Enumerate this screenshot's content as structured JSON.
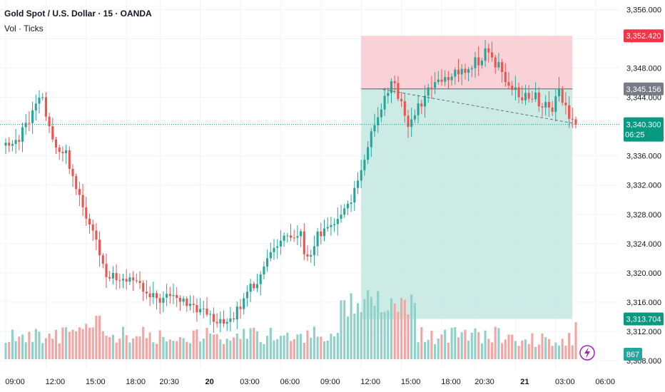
{
  "header": {
    "title": "Gold Spot / U.S. Dollar · 15 · OANDA",
    "indicator": "Vol · Ticks"
  },
  "colors": {
    "up": "#26a69a",
    "down": "#ef5350",
    "vol_up": "#8fd1c9",
    "vol_down": "#f4a5a3",
    "grid": "#f0f3fa",
    "axis_text": "#131722",
    "stop_zone": "#f9c9cf",
    "target_zone": "#c3e8e0",
    "stop_label": "#f23645",
    "entry_label": "#787b86",
    "target_label": "#089981",
    "current_label": "#089981"
  },
  "chart_data": {
    "type": "candlestick",
    "y_axis": {
      "min": 3308,
      "max": 3356,
      "ticks": [
        "3,356.000",
        "3,352.000",
        "3,348.000",
        "3,344.000",
        "3,340.000",
        "3,336.000",
        "3,332.000",
        "3,328.000",
        "3,324.000",
        "3,320.000",
        "3,316.000",
        "3,312.000",
        "3,308.000"
      ],
      "tick_values": [
        3356,
        3352,
        3348,
        3344,
        3340,
        3336,
        3332,
        3328,
        3324,
        3320,
        3316,
        3312,
        3308
      ]
    },
    "x_axis": {
      "ticks": [
        "09:00",
        "12:00",
        "15:00",
        "18:00",
        "20:30",
        "20",
        "03:00",
        "06:00",
        "09:00",
        "12:00",
        "15:00",
        "18:00",
        "20:30",
        "21",
        "03:00",
        "06:00"
      ],
      "bold": [
        false,
        false,
        false,
        false,
        false,
        true,
        false,
        false,
        false,
        false,
        false,
        false,
        false,
        true,
        false,
        false
      ],
      "tick_bar_index": [
        0,
        12,
        24,
        36,
        46,
        58,
        70,
        82,
        94,
        106,
        118,
        130,
        140,
        152,
        164,
        176
      ]
    },
    "price_keypoints": [
      [
        0,
        3337.8
      ],
      [
        4,
        3338.2
      ],
      [
        7,
        3341.0
      ],
      [
        10,
        3344.5
      ],
      [
        12,
        3342.0
      ],
      [
        15,
        3337.5
      ],
      [
        18,
        3336.0
      ],
      [
        20,
        3333.2
      ],
      [
        22,
        3331.0
      ],
      [
        24,
        3327.0
      ],
      [
        27,
        3324.0
      ],
      [
        30,
        3320.0
      ],
      [
        34,
        3319.2
      ],
      [
        38,
        3318.5
      ],
      [
        42,
        3317.2
      ],
      [
        46,
        3316.5
      ],
      [
        50,
        3316.8
      ],
      [
        54,
        3316.2
      ],
      [
        58,
        3315.0
      ],
      [
        62,
        3313.8
      ],
      [
        66,
        3313.0
      ],
      [
        69,
        3314.6
      ],
      [
        72,
        3317.0
      ],
      [
        76,
        3320.0
      ],
      [
        80,
        3323.0
      ],
      [
        84,
        3325.5
      ],
      [
        88,
        3325.0
      ],
      [
        90,
        3321.5
      ],
      [
        93,
        3325.0
      ],
      [
        97,
        3326.5
      ],
      [
        100,
        3327.5
      ],
      [
        103,
        3330.0
      ],
      [
        105,
        3332.5
      ],
      [
        107,
        3336.0
      ],
      [
        110,
        3340.0
      ],
      [
        112,
        3342.0
      ],
      [
        115,
        3346.5
      ],
      [
        117,
        3344.5
      ],
      [
        119,
        3341.0
      ],
      [
        121,
        3340.5
      ],
      [
        123,
        3342.5
      ],
      [
        126,
        3345.0
      ],
      [
        130,
        3346.3
      ],
      [
        134,
        3347.0
      ],
      [
        137,
        3348.0
      ],
      [
        141,
        3349.0
      ],
      [
        143,
        3350.2
      ],
      [
        147,
        3348.2
      ],
      [
        151,
        3345.5
      ],
      [
        154,
        3343.5
      ],
      [
        157,
        3344.5
      ],
      [
        160,
        3343.0
      ],
      [
        163,
        3342.5
      ],
      [
        165,
        3344.8
      ],
      [
        168,
        3341.5
      ],
      [
        170,
        3340.3
      ]
    ],
    "volume_max": 2000,
    "volume_overlay_top_value": 1650,
    "position": {
      "type": "long",
      "start_index": 106,
      "end_index": 169,
      "stop": 3352.42,
      "entry": 3345.156,
      "target": 3313.704
    },
    "trend_line": {
      "from": [
        111,
        3345.2
      ],
      "to": [
        170,
        3340.4
      ]
    },
    "current_price": 3340.3,
    "labels": {
      "stop": "3,352.420",
      "entry": "3,345.156",
      "current": "3,340.300",
      "countdown": "06:25",
      "target": "3,313.704",
      "volume": "867"
    }
  }
}
